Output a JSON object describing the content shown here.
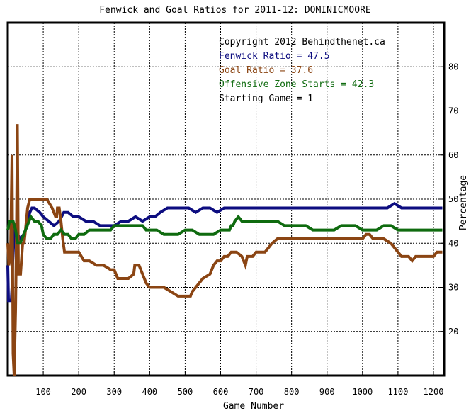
{
  "chart_data": {
    "type": "line",
    "title": "Fenwick and Goal Ratios for 2011-12: DOMINICMOORE",
    "xlabel": "Game Number",
    "ylabel": "Percentage",
    "xlim": [
      0,
      1230
    ],
    "ylim": [
      10,
      90
    ],
    "x_ticks": [
      100,
      200,
      300,
      400,
      500,
      600,
      700,
      800,
      900,
      1000,
      1100,
      1200
    ],
    "y_ticks": [
      20,
      30,
      40,
      50,
      60,
      70,
      80
    ],
    "grid": true,
    "annotations": [
      {
        "text": "Copyright 2012 Behindthenet.ca",
        "color": "#000000"
      },
      {
        "text": "Fenwick Ratio = 47.5",
        "color": "#0d0d80"
      },
      {
        "text": "Goal Ratio = 37.6",
        "color": "#8b4513"
      },
      {
        "text": "Offensive Zone Starts = 42.3",
        "color": "#0f6b0f"
      },
      {
        "text": "Starting Game = 1",
        "color": "#000000"
      }
    ],
    "series": [
      {
        "color": "#0d0d80",
        "points": [
          [
            0,
            35
          ],
          [
            2,
            27
          ],
          [
            10,
            27
          ],
          [
            12,
            30
          ],
          [
            14,
            36
          ],
          [
            18,
            42
          ],
          [
            22,
            44
          ],
          [
            28,
            42
          ],
          [
            35,
            41
          ],
          [
            45,
            42
          ],
          [
            55,
            44
          ],
          [
            62,
            47
          ],
          [
            68,
            48
          ],
          [
            75,
            48
          ],
          [
            90,
            47
          ],
          [
            100,
            46
          ],
          [
            115,
            45
          ],
          [
            130,
            44
          ],
          [
            145,
            45
          ],
          [
            158,
            47
          ],
          [
            170,
            47
          ],
          [
            185,
            46
          ],
          [
            200,
            46
          ],
          [
            220,
            45
          ],
          [
            240,
            45
          ],
          [
            260,
            44
          ],
          [
            280,
            44
          ],
          [
            300,
            44
          ],
          [
            320,
            45
          ],
          [
            340,
            45
          ],
          [
            360,
            46
          ],
          [
            380,
            45
          ],
          [
            400,
            46
          ],
          [
            415,
            46
          ],
          [
            430,
            47
          ],
          [
            450,
            48
          ],
          [
            470,
            48
          ],
          [
            490,
            48
          ],
          [
            510,
            48
          ],
          [
            530,
            47
          ],
          [
            550,
            48
          ],
          [
            570,
            48
          ],
          [
            590,
            47
          ],
          [
            610,
            48
          ],
          [
            630,
            48
          ],
          [
            650,
            48
          ],
          [
            670,
            48
          ],
          [
            690,
            48
          ],
          [
            710,
            48
          ],
          [
            730,
            48
          ],
          [
            750,
            48
          ],
          [
            770,
            48
          ],
          [
            790,
            48
          ],
          [
            810,
            48
          ],
          [
            830,
            48
          ],
          [
            850,
            48
          ],
          [
            870,
            48
          ],
          [
            890,
            48
          ],
          [
            910,
            48
          ],
          [
            930,
            48
          ],
          [
            950,
            48
          ],
          [
            970,
            48
          ],
          [
            990,
            48
          ],
          [
            1010,
            48
          ],
          [
            1030,
            48
          ],
          [
            1050,
            48
          ],
          [
            1070,
            48
          ],
          [
            1090,
            49
          ],
          [
            1110,
            48
          ],
          [
            1130,
            48
          ],
          [
            1150,
            48
          ],
          [
            1170,
            48
          ],
          [
            1190,
            48
          ],
          [
            1210,
            48
          ],
          [
            1225,
            48
          ]
        ]
      },
      {
        "color": "#8b4513",
        "points": [
          [
            0,
            40
          ],
          [
            3,
            35
          ],
          [
            8,
            38
          ],
          [
            12,
            60
          ],
          [
            15,
            15
          ],
          [
            18,
            10
          ],
          [
            22,
            25
          ],
          [
            25,
            45
          ],
          [
            27,
            67
          ],
          [
            30,
            33
          ],
          [
            36,
            33
          ],
          [
            42,
            40
          ],
          [
            46,
            40
          ],
          [
            50,
            43
          ],
          [
            56,
            48
          ],
          [
            62,
            50
          ],
          [
            75,
            50
          ],
          [
            95,
            50
          ],
          [
            110,
            50
          ],
          [
            125,
            48
          ],
          [
            135,
            46
          ],
          [
            138,
            46
          ],
          [
            140,
            48
          ],
          [
            145,
            48
          ],
          [
            150,
            45
          ],
          [
            155,
            41
          ],
          [
            160,
            38
          ],
          [
            170,
            38
          ],
          [
            185,
            38
          ],
          [
            200,
            38
          ],
          [
            215,
            36
          ],
          [
            230,
            36
          ],
          [
            250,
            35
          ],
          [
            270,
            35
          ],
          [
            290,
            34
          ],
          [
            300,
            34
          ],
          [
            310,
            32
          ],
          [
            320,
            32
          ],
          [
            340,
            32
          ],
          [
            355,
            33
          ],
          [
            358,
            35
          ],
          [
            370,
            35
          ],
          [
            380,
            33
          ],
          [
            390,
            31
          ],
          [
            400,
            30
          ],
          [
            420,
            30
          ],
          [
            440,
            30
          ],
          [
            460,
            29
          ],
          [
            480,
            28
          ],
          [
            500,
            28
          ],
          [
            515,
            28
          ],
          [
            520,
            29
          ],
          [
            530,
            30
          ],
          [
            550,
            32
          ],
          [
            570,
            33
          ],
          [
            580,
            35
          ],
          [
            590,
            36
          ],
          [
            600,
            36
          ],
          [
            610,
            37
          ],
          [
            620,
            37
          ],
          [
            630,
            38
          ],
          [
            645,
            38
          ],
          [
            660,
            37
          ],
          [
            670,
            35
          ],
          [
            675,
            37
          ],
          [
            690,
            37
          ],
          [
            700,
            38
          ],
          [
            715,
            38
          ],
          [
            725,
            38
          ],
          [
            735,
            39
          ],
          [
            745,
            40
          ],
          [
            760,
            41
          ],
          [
            780,
            41
          ],
          [
            800,
            41
          ],
          [
            820,
            41
          ],
          [
            840,
            41
          ],
          [
            860,
            41
          ],
          [
            880,
            41
          ],
          [
            900,
            41
          ],
          [
            920,
            41
          ],
          [
            940,
            41
          ],
          [
            960,
            41
          ],
          [
            980,
            41
          ],
          [
            1000,
            41
          ],
          [
            1010,
            42
          ],
          [
            1020,
            42
          ],
          [
            1030,
            41
          ],
          [
            1040,
            41
          ],
          [
            1060,
            41
          ],
          [
            1080,
            40
          ],
          [
            1090,
            39
          ],
          [
            1100,
            38
          ],
          [
            1110,
            37
          ],
          [
            1120,
            37
          ],
          [
            1130,
            37
          ],
          [
            1140,
            36
          ],
          [
            1150,
            37
          ],
          [
            1160,
            37
          ],
          [
            1180,
            37
          ],
          [
            1200,
            37
          ],
          [
            1210,
            38
          ],
          [
            1225,
            38
          ]
        ]
      },
      {
        "color": "#0f6b0f",
        "points": [
          [
            0,
            43
          ],
          [
            5,
            45
          ],
          [
            15,
            45
          ],
          [
            22,
            43
          ],
          [
            28,
            40
          ],
          [
            35,
            40
          ],
          [
            45,
            42
          ],
          [
            55,
            44
          ],
          [
            65,
            46
          ],
          [
            75,
            45
          ],
          [
            85,
            45
          ],
          [
            95,
            44
          ],
          [
            100,
            42
          ],
          [
            110,
            41
          ],
          [
            120,
            41
          ],
          [
            130,
            42
          ],
          [
            140,
            42
          ],
          [
            150,
            43
          ],
          [
            160,
            42
          ],
          [
            170,
            42
          ],
          [
            180,
            41
          ],
          [
            190,
            41
          ],
          [
            200,
            42
          ],
          [
            215,
            42
          ],
          [
            230,
            43
          ],
          [
            250,
            43
          ],
          [
            270,
            43
          ],
          [
            290,
            43
          ],
          [
            300,
            44
          ],
          [
            320,
            44
          ],
          [
            340,
            44
          ],
          [
            360,
            44
          ],
          [
            380,
            44
          ],
          [
            390,
            43
          ],
          [
            400,
            43
          ],
          [
            420,
            43
          ],
          [
            440,
            42
          ],
          [
            460,
            42
          ],
          [
            480,
            42
          ],
          [
            500,
            43
          ],
          [
            520,
            43
          ],
          [
            540,
            42
          ],
          [
            560,
            42
          ],
          [
            580,
            42
          ],
          [
            600,
            43
          ],
          [
            615,
            43
          ],
          [
            625,
            43
          ],
          [
            630,
            44
          ],
          [
            635,
            44
          ],
          [
            640,
            45
          ],
          [
            650,
            46
          ],
          [
            660,
            45
          ],
          [
            680,
            45
          ],
          [
            700,
            45
          ],
          [
            720,
            45
          ],
          [
            740,
            45
          ],
          [
            760,
            45
          ],
          [
            780,
            44
          ],
          [
            800,
            44
          ],
          [
            820,
            44
          ],
          [
            840,
            44
          ],
          [
            860,
            43
          ],
          [
            880,
            43
          ],
          [
            900,
            43
          ],
          [
            920,
            43
          ],
          [
            940,
            44
          ],
          [
            960,
            44
          ],
          [
            980,
            44
          ],
          [
            1000,
            43
          ],
          [
            1020,
            43
          ],
          [
            1040,
            43
          ],
          [
            1060,
            44
          ],
          [
            1080,
            44
          ],
          [
            1100,
            43
          ],
          [
            1120,
            43
          ],
          [
            1140,
            43
          ],
          [
            1160,
            43
          ],
          [
            1180,
            43
          ],
          [
            1200,
            43
          ],
          [
            1215,
            43
          ],
          [
            1225,
            43
          ]
        ]
      }
    ]
  }
}
